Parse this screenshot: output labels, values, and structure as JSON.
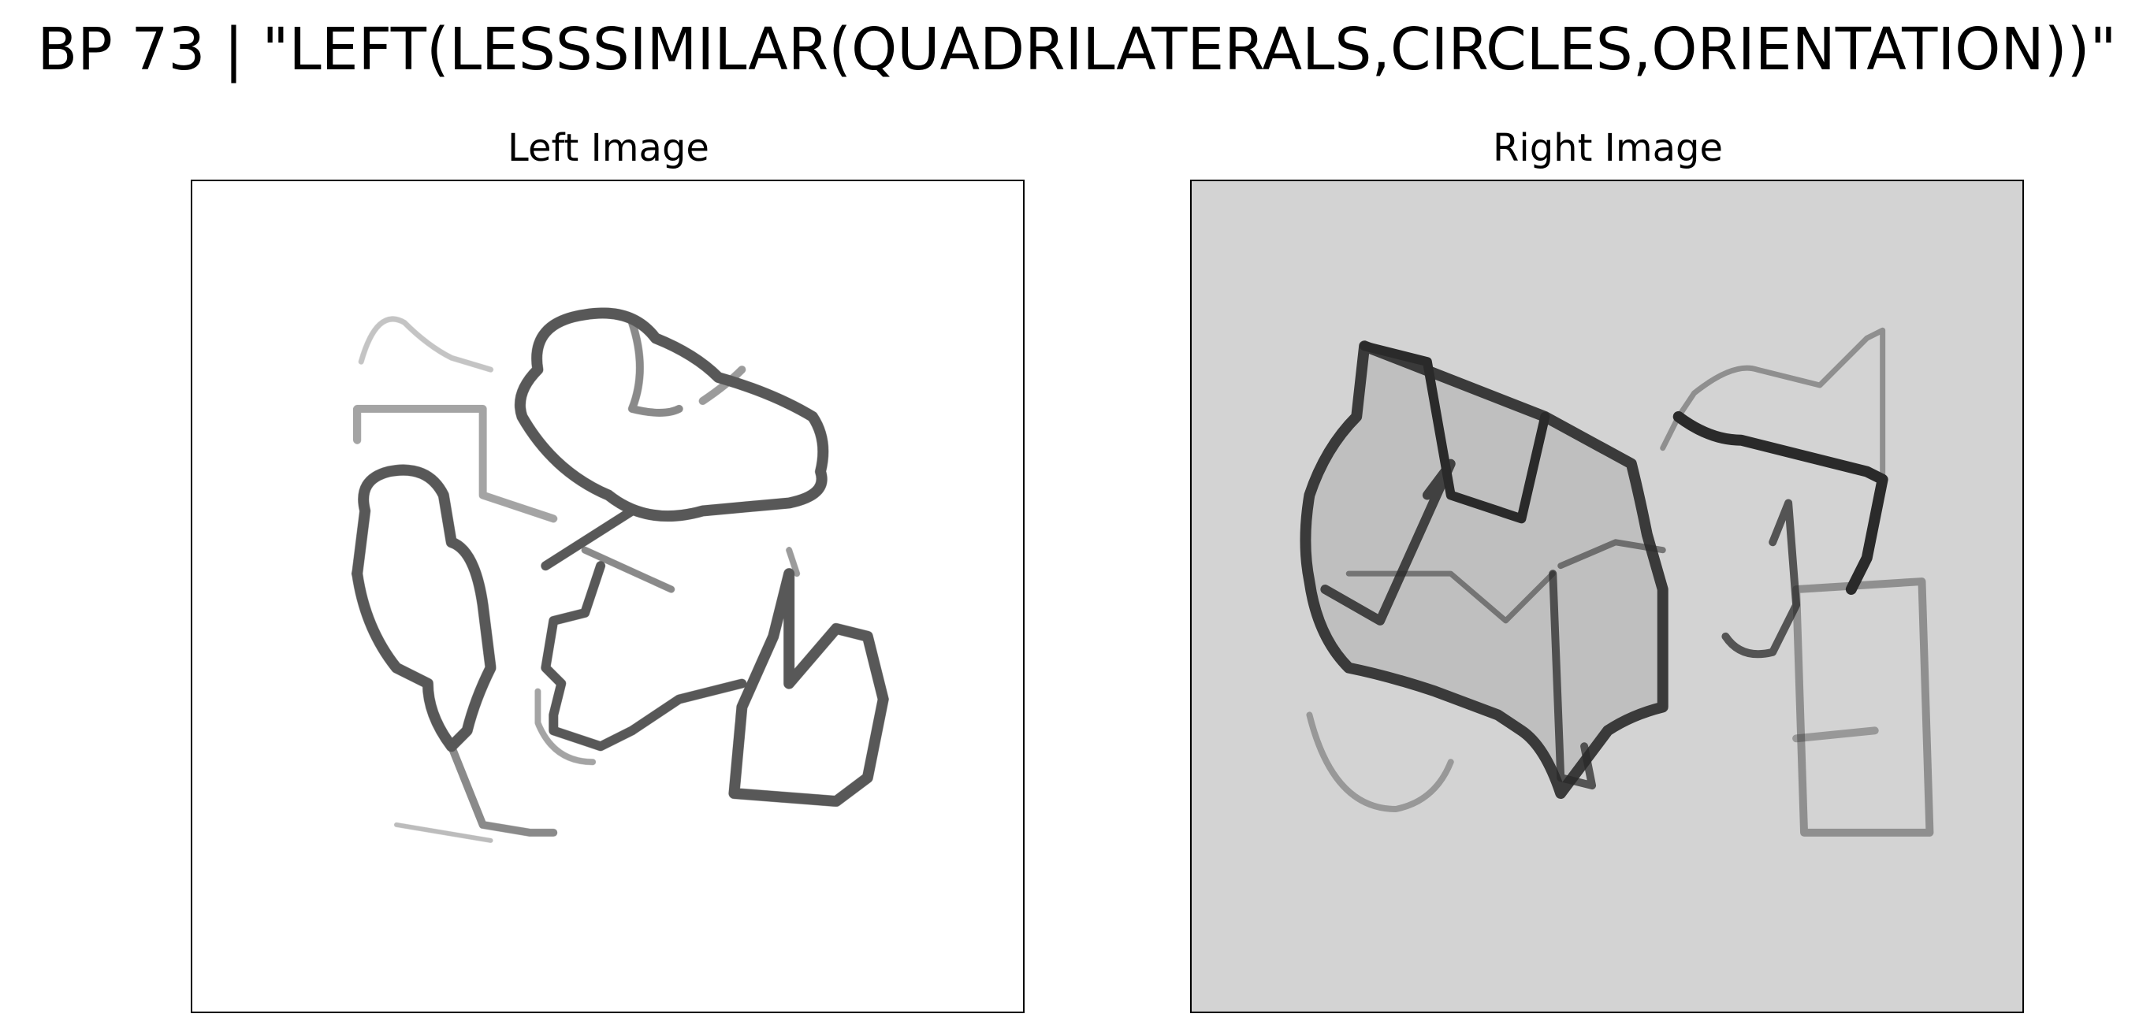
{
  "figure": {
    "title": "BP 73 | \"LEFT(LESSSIMILAR(QUADRILATERALS,CIRCLES,ORIENTATION))\""
  },
  "panels": [
    {
      "title": "Left Image",
      "background": "#ffffff",
      "stroke": "#3a3a3a"
    },
    {
      "title": "Right Image",
      "background": "#d3d3d3",
      "stroke": "#2a2a2a"
    }
  ],
  "icons": {
    "left_image": "hand-drawn-shapes-icon",
    "right_image": "hand-drawn-shapes-icon"
  }
}
